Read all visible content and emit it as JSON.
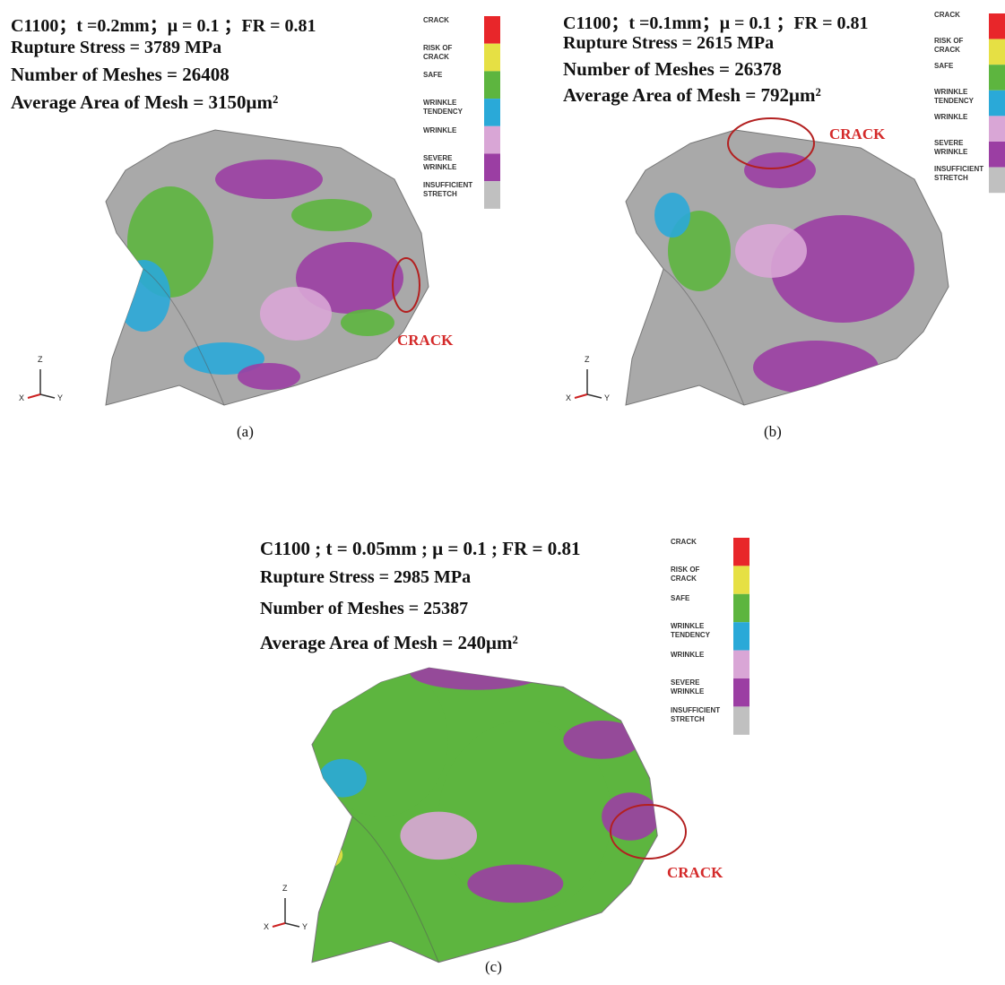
{
  "panels": [
    {
      "caption": "(a)",
      "lines": [
        "C1100；t =0.2mm；μ = 0.1 ；FR = 0.81",
        "Rupture Stress = 3789 MPa",
        "Number of Meshes = 26408",
        "Average Area of Mesh = 3150μm²"
      ],
      "crack": "CRACK",
      "axes": [
        "Z",
        "X",
        "Y"
      ],
      "legend": [
        {
          "label": "CRACK",
          "color": "#e8262a"
        },
        {
          "label": "RISK OF CRACK",
          "color": "#e6e044"
        },
        {
          "label": "SAFE",
          "color": "#5db53f"
        },
        {
          "label": "WRINKLE TENDENCY",
          "color": "#2aa9d8"
        },
        {
          "label": "WRINKLE",
          "color": "#d9a6d6"
        },
        {
          "label": "SEVERE WRINKLE",
          "color": "#9b3ea3"
        },
        {
          "label": "INSUFFICIENT STRETCH",
          "color": "#c0c0c0"
        }
      ]
    },
    {
      "caption": "(b)",
      "lines": [
        "C1100；t =0.1mm；μ = 0.1 ；FR = 0.81",
        "Rupture Stress = 2615 MPa",
        "Number of Meshes = 26378",
        "Average Area of Mesh = 792μm²"
      ],
      "crack": "CRACK",
      "axes": [
        "Z",
        "X",
        "Y"
      ],
      "legend": [
        {
          "label": "CRACK",
          "color": "#e8262a"
        },
        {
          "label": "RISK OF CRACK",
          "color": "#e6e044"
        },
        {
          "label": "SAFE",
          "color": "#5db53f"
        },
        {
          "label": "WRINKLE TENDENCY",
          "color": "#2aa9d8"
        },
        {
          "label": "WRINKLE",
          "color": "#d9a6d6"
        },
        {
          "label": "SEVERE WRINKLE",
          "color": "#9b3ea3"
        },
        {
          "label": "INSUFFICIENT STRETCH",
          "color": "#c0c0c0"
        }
      ]
    },
    {
      "caption": "(c)",
      "lines": [
        "C1100 ; t = 0.05mm ; μ = 0.1 ; FR = 0.81",
        "Rupture Stress = 2985 MPa",
        "Number of Meshes = 25387",
        "Average Area of Mesh = 240μm²"
      ],
      "crack": "CRACK",
      "axes": [
        "Z",
        "X",
        "Y"
      ],
      "legend": [
        {
          "label": "CRACK",
          "color": "#e8262a"
        },
        {
          "label": "RISK OF CRACK",
          "color": "#e6e044"
        },
        {
          "label": "SAFE",
          "color": "#5db53f"
        },
        {
          "label": "WRINKLE TENDENCY",
          "color": "#2aa9d8"
        },
        {
          "label": "WRINKLE",
          "color": "#d9a6d6"
        },
        {
          "label": "SEVERE WRINKLE",
          "color": "#9b3ea3"
        },
        {
          "label": "INSUFFICIENT STRETCH",
          "color": "#c0c0c0"
        }
      ]
    }
  ]
}
